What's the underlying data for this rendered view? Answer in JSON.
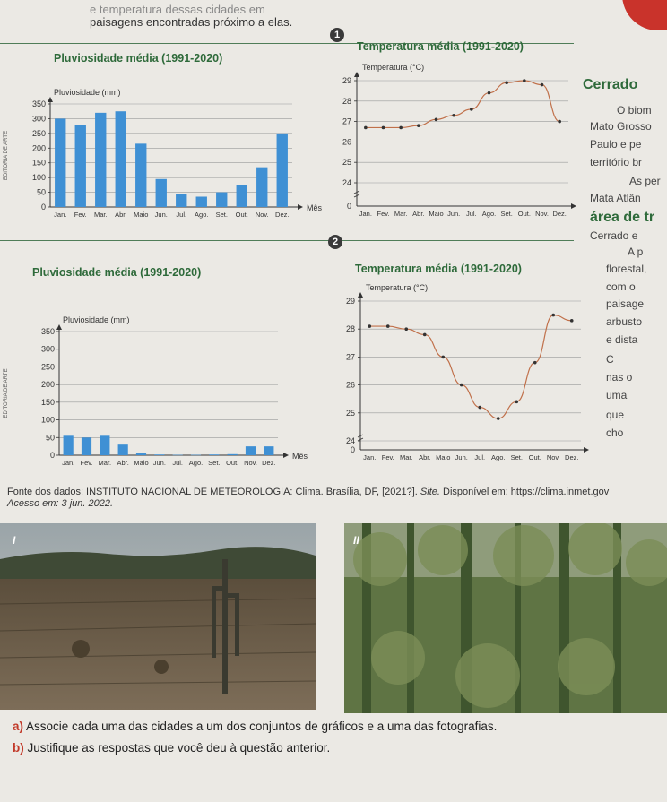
{
  "intro": {
    "line1": "e temperatura dessas cidades em",
    "line2": "paisagens encontradas próximo a elas."
  },
  "sets": [
    {
      "badge": "1",
      "rain": {
        "title": "Pluviosidade média (1991-2020)",
        "ylabel": "Pluviosidade (mm)",
        "xlabel": "Mês",
        "watermark": "EDITORIA DE ARTE",
        "ticks": [
          "0",
          "50",
          "100",
          "150",
          "200",
          "250",
          "300",
          "350"
        ]
      },
      "temp": {
        "title": "Temperatura média (1991-2020)",
        "ylabel": "Temperatura (°C)",
        "ticks": [
          "0",
          "24",
          "25",
          "26",
          "27",
          "28",
          "29"
        ]
      }
    },
    {
      "badge": "2",
      "rain": {
        "title": "Pluviosidade média (1991-2020)",
        "ylabel": "Pluviosidade (mm)",
        "xlabel": "Mês",
        "watermark": "EDITORIA DE ARTE",
        "ticks": [
          "0",
          "50",
          "100",
          "150",
          "200",
          "250",
          "300",
          "350"
        ]
      },
      "temp": {
        "title": "Temperatura média (1991-2020)",
        "ylabel": "Temperatura (°C)",
        "ticks": [
          "0",
          "24",
          "25",
          "26",
          "27",
          "28",
          "29"
        ]
      }
    }
  ],
  "months": [
    "Jan.",
    "Fev.",
    "Mar.",
    "Abr.",
    "Maio",
    "Jun.",
    "Jul.",
    "Ago.",
    "Set.",
    "Out.",
    "Nov.",
    "Dez."
  ],
  "chart_data": [
    {
      "type": "bar",
      "title": "Pluviosidade média (1991-2020)",
      "xlabel": "Mês",
      "ylabel": "Pluviosidade (mm)",
      "categories": [
        "Jan.",
        "Fev.",
        "Mar.",
        "Abr.",
        "Maio",
        "Jun.",
        "Jul.",
        "Ago.",
        "Set.",
        "Out.",
        "Nov.",
        "Dez."
      ],
      "values": [
        300,
        280,
        320,
        325,
        215,
        95,
        45,
        35,
        50,
        75,
        135,
        250
      ],
      "ylim": [
        0,
        350
      ],
      "grid": true
    },
    {
      "type": "line",
      "title": "Temperatura média (1991-2020)",
      "ylabel": "Temperatura (°C)",
      "categories": [
        "Jan.",
        "Fev.",
        "Mar.",
        "Abr.",
        "Maio",
        "Jun.",
        "Jul.",
        "Ago.",
        "Set.",
        "Out.",
        "Nov.",
        "Dez."
      ],
      "values": [
        26.7,
        26.7,
        26.7,
        26.8,
        27.1,
        27.3,
        27.6,
        28.4,
        28.9,
        29.0,
        28.8,
        27.0
      ],
      "ylim": [
        24,
        29
      ],
      "grid": true
    },
    {
      "type": "bar",
      "title": "Pluviosidade média (1991-2020)",
      "xlabel": "Mês",
      "ylabel": "Pluviosidade (mm)",
      "categories": [
        "Jan.",
        "Fev.",
        "Mar.",
        "Abr.",
        "Maio",
        "Jun.",
        "Jul.",
        "Ago.",
        "Set.",
        "Out.",
        "Nov.",
        "Dez."
      ],
      "values": [
        55,
        50,
        55,
        30,
        5,
        2,
        1,
        1,
        2,
        3,
        25,
        25
      ],
      "ylim": [
        0,
        350
      ],
      "grid": true
    },
    {
      "type": "line",
      "title": "Temperatura média (1991-2020)",
      "ylabel": "Temperatura (°C)",
      "categories": [
        "Jan.",
        "Fev.",
        "Mar.",
        "Abr.",
        "Maio",
        "Jun.",
        "Jul.",
        "Ago.",
        "Set.",
        "Out.",
        "Nov.",
        "Dez."
      ],
      "values": [
        28.1,
        28.1,
        28.0,
        27.8,
        27.0,
        26.0,
        25.2,
        24.8,
        25.4,
        26.8,
        28.5,
        28.3
      ],
      "ylim": [
        24,
        29
      ],
      "grid": true
    }
  ],
  "side_text": [
    {
      "text": "Cerrado",
      "bold": true
    },
    {
      "text": "O biom"
    },
    {
      "text": "Mato Grosso"
    },
    {
      "text": "Paulo e pe"
    },
    {
      "text": "território br"
    },
    {
      "text": "As per"
    },
    {
      "text": "Mata Atlân"
    },
    {
      "text": "área de tr",
      "bold": true
    },
    {
      "text": "Cerrado e"
    },
    {
      "text": "A p"
    },
    {
      "text": "florestal,"
    },
    {
      "text": "com o"
    },
    {
      "text": "paisage"
    },
    {
      "text": "arbusto"
    },
    {
      "text": "e dista"
    },
    {
      "text": "C"
    },
    {
      "text": "nas o"
    },
    {
      "text": "uma"
    },
    {
      "text": "que"
    },
    {
      "text": "cho"
    }
  ],
  "source": {
    "line1_a": "Fonte dos dados: INSTITUTO NACIONAL DE METEOROLOGIA: Clima. Brasília, DF, [2021?]. ",
    "line1_b": "Site.",
    "line1_c": " Disponível em: https://clima.inmet.gov",
    "line2": "Acesso em: 3 jun. 2022."
  },
  "photos": [
    {
      "label": "I",
      "icon": "dry-landscape-photo"
    },
    {
      "label": "II",
      "icon": "forest-photo"
    }
  ],
  "questions": [
    {
      "letter": "a)",
      "text": "Associe cada uma das cidades a um dos conjuntos de gráficos e a uma das fotografias."
    },
    {
      "letter": "b)",
      "text": "Justifique as respostas que você deu à questão anterior."
    }
  ],
  "colors": {
    "bar": "#3f90d4",
    "line": "#c0704a",
    "point": "#333333",
    "title": "#2e6a3a"
  }
}
